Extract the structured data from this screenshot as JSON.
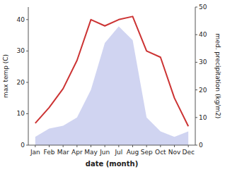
{
  "chart_data": {
    "type": "line",
    "categories": [
      "Jan",
      "Feb",
      "Mar",
      "Apr",
      "May",
      "Jun",
      "Jul",
      "Aug",
      "Sep",
      "Oct",
      "Nov",
      "Dec"
    ],
    "xlabel": "date (month)",
    "ylabel": "max temp (C)",
    "y2label": "med. precipitation (kg/m2)",
    "ylim": [
      0,
      44
    ],
    "yticks": [
      0,
      10,
      20,
      30,
      40
    ],
    "y2lim": [
      0,
      50
    ],
    "y2ticks": [
      0,
      10,
      20,
      30,
      40,
      50
    ],
    "grid": false,
    "series": [
      {
        "type": "area",
        "axis": "y2",
        "color": "#b0b8e8",
        "values": [
          3,
          6,
          7,
          10,
          20,
          37,
          43,
          38,
          10,
          5,
          3,
          5
        ]
      },
      {
        "type": "line",
        "color": "#cc3333",
        "values": [
          7,
          12,
          18,
          27,
          40,
          38,
          40,
          41,
          30,
          28,
          15,
          6
        ]
      }
    ]
  }
}
